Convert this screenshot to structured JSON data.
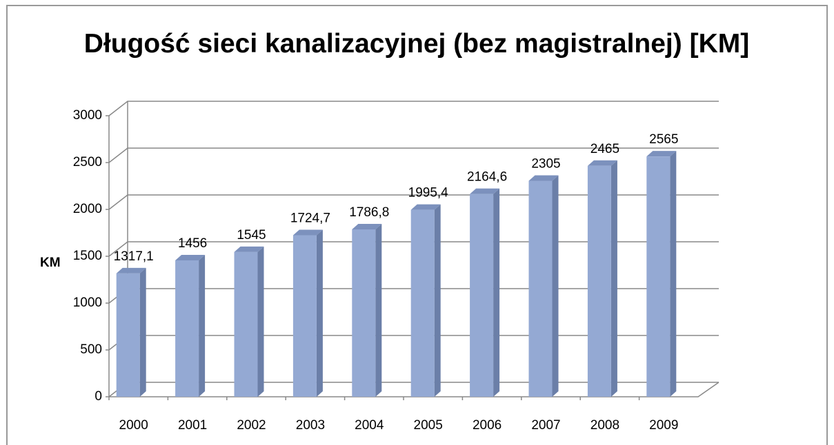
{
  "chart_data": {
    "type": "bar3d",
    "title": "Długość sieci kanalizacyjnej (bez magistralnej) [KM]",
    "y_label": "KM",
    "categories": [
      "2000",
      "2001",
      "2002",
      "2003",
      "2004",
      "2005",
      "2006",
      "2007",
      "2008",
      "2009"
    ],
    "values": [
      1317.1,
      1456,
      1545,
      1724.7,
      1786.8,
      1995.4,
      2164.6,
      2305,
      2465,
      2565
    ],
    "value_labels": [
      "1317,1",
      "1456",
      "1545",
      "1724,7",
      "1786,8",
      "1995,4",
      "2164,6",
      "2305",
      "2465",
      "2565"
    ],
    "color": "#94a9d3",
    "ylim": [
      0,
      3000
    ],
    "yticks": [
      0,
      500,
      1000,
      1500,
      2000,
      2500,
      3000
    ],
    "grid": true
  }
}
